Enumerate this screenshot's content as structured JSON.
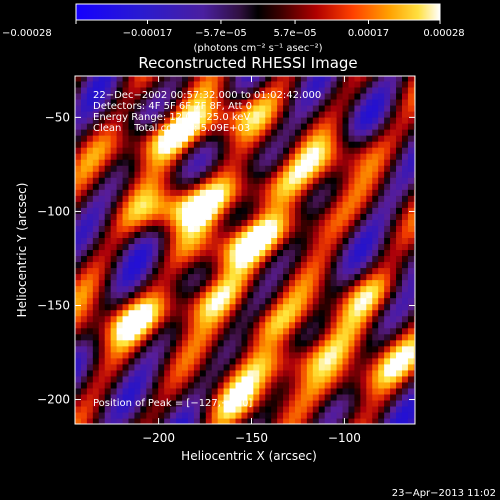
{
  "chart_data": {
    "type": "heatmap",
    "title": "Reconstructed RHESSI Image",
    "xlabel": "Heliocentric X (arcsec)",
    "ylabel": "Heliocentric Y (arcsec)",
    "xlim": [
      -245,
      -62
    ],
    "ylim": [
      -213,
      -28
    ],
    "x_ticks": [
      -200,
      -150,
      -100
    ],
    "x_tick_labels": [
      "−200",
      "−150",
      "−100"
    ],
    "y_ticks": [
      -50,
      -100,
      -150,
      -200
    ],
    "y_tick_labels": [
      "−50",
      "−100",
      "−150",
      "−200"
    ],
    "colorbar": {
      "min": -0.00028,
      "max": 0.00028,
      "ticks": [
        -0.00028,
        -0.00017,
        -5.7e-05,
        5.7e-05,
        0.00017,
        0.00028
      ],
      "tick_labels": [
        "−0.00028",
        "−0.00017",
        "−5.7e−05",
        "5.7e−05",
        "0.00017",
        "0.00028"
      ],
      "unit_label": "(photons cm⁻² s⁻¹ asec⁻²)"
    },
    "annotations": [
      "22−Dec−2002 00:57:32.000 to 01:02:42.000",
      "Detectors: 4F 5F 6F 7F 8F, Att 0",
      "Energy Range: 12.0 − 25.0 keV",
      "Clean    Total counts: 5.09E+03"
    ],
    "peak_label": "Position of Peak = [−127,−180]",
    "peak": [
      -127,
      -180
    ],
    "pattern": {
      "description_values": "periodic fringe pattern of flux density; stripes run lower-left to upper-right",
      "blobs": [
        [
          -202,
          -62,
          1.0
        ],
        [
          -192,
          -98,
          1.0
        ],
        [
          -163,
          -50,
          0.75
        ],
        [
          -148,
          -88,
          0.9
        ],
        [
          -158,
          -118,
          0.75
        ],
        [
          -215,
          -158,
          0.75
        ],
        [
          -176,
          -148,
          0.8
        ],
        [
          -128,
          -108,
          0.7
        ],
        [
          -100,
          -70,
          0.6
        ],
        [
          -143,
          -160,
          0.65
        ],
        [
          -152,
          -200,
          0.5
        ],
        [
          -127,
          -180,
          1.0
        ],
        [
          -85,
          -143,
          0.6
        ],
        [
          -70,
          -178,
          0.5
        ],
        [
          -95,
          -190,
          0.55
        ]
      ]
    }
  },
  "footer": {
    "timestamp": "23−Apr−2013 11:02"
  }
}
